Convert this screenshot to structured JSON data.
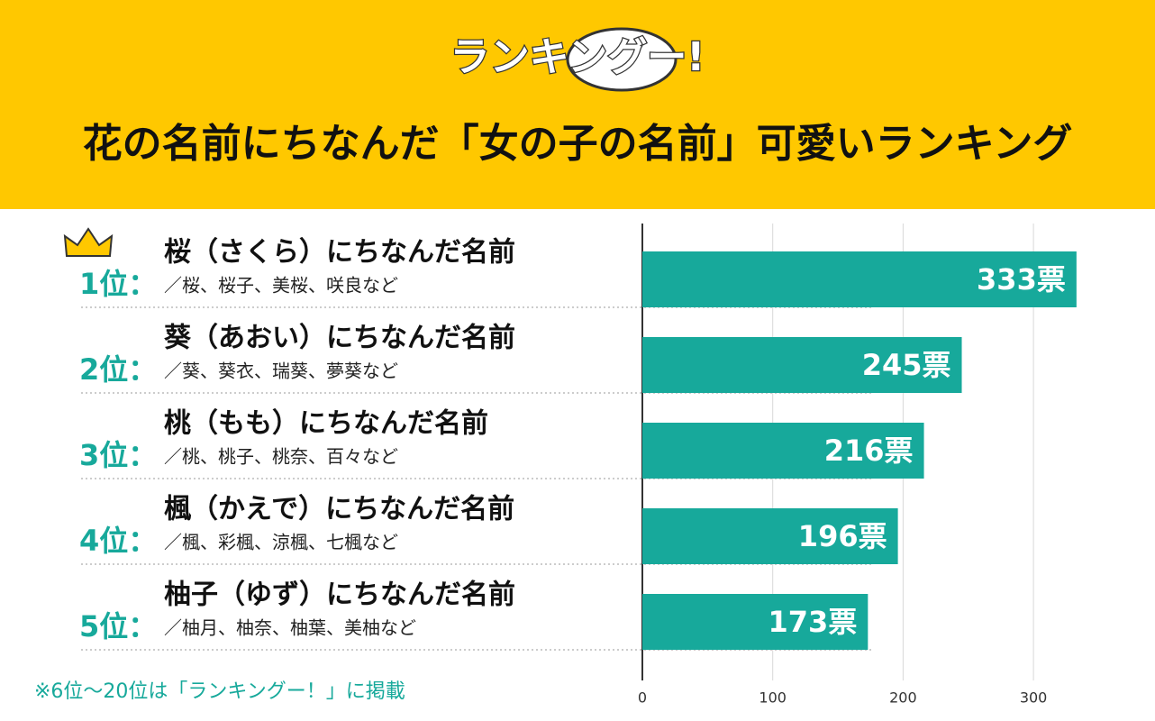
{
  "logo": "ランキングー!",
  "chart_data": {
    "type": "hbar",
    "title": "花の名前にちなんだ「女の子の名前」可愛いランキング",
    "ranks": [
      "1位：",
      "2位：",
      "3位：",
      "4位：",
      "5位："
    ],
    "categories": [
      "桜（さくら）にちなんだ名前",
      "葵（あおい）にちなんだ名前",
      "桃（もも）にちなんだ名前",
      "楓（かえで）にちなんだ名前",
      "柚子（ゆず）にちなんだ名前"
    ],
    "descriptions": [
      "／桜、桜子、美桜、咲良など",
      "／葵、葵衣、瑞葵、夢葵など",
      "／桃、桃子、桃奈、百々など",
      "／楓、彩楓、涼楓、七楓など",
      "／柚月、柚奈、柚葉、美柚など"
    ],
    "values": [
      333,
      245,
      216,
      196,
      173
    ],
    "value_labels": [
      "333票",
      "245票",
      "216票",
      "196票",
      "173票"
    ],
    "color": "#17a99b",
    "xlim": [
      0,
      340
    ],
    "xticks": [
      0,
      100,
      200,
      300
    ],
    "grid": true,
    "note": "※6位〜20位は「ランキングー！」に掲載"
  }
}
